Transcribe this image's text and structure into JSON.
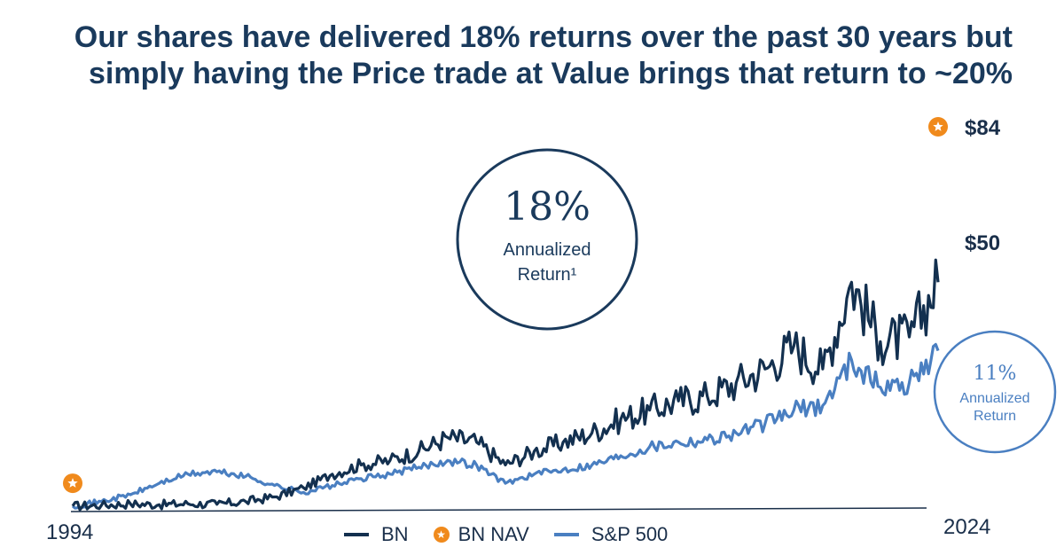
{
  "title_line1": "Our shares have delivered 18% returns over the past 30 years but",
  "title_line2": "simply having the Price trade at Value brings that return to ~20%",
  "callout_bn": {
    "pct": "18%",
    "line1": "Annualized",
    "line2": "Return¹"
  },
  "callout_sp": {
    "pct": "11%",
    "line1": "Annualized",
    "line2": "Return"
  },
  "end_labels": {
    "nav": "$84",
    "bn": "$50"
  },
  "colors": {
    "bn": "#13304f",
    "sp": "#4a7fc1",
    "nav": "#f08a1c",
    "axis": "#1a2f4a"
  },
  "legend": [
    {
      "name": "BN",
      "kind": "line",
      "color": "#13304f"
    },
    {
      "name": "BN NAV",
      "kind": "star",
      "color": "#f08a1c"
    },
    {
      "name": "S&P 500",
      "kind": "line",
      "color": "#4a7fc1"
    }
  ],
  "chart_data": {
    "type": "line",
    "xlabel": "",
    "ylabel": "",
    "x_start_label": "1994",
    "x_end_label": "2024",
    "xlim": [
      1994,
      2024
    ],
    "ylim": [
      0,
      84
    ],
    "grid": false,
    "legend_position": "bottom-center",
    "series": [
      {
        "name": "BN",
        "x": [
          1994,
          1995,
          1996,
          1997,
          1998,
          1999,
          2000,
          2001,
          2002,
          2003,
          2004,
          2005,
          2006,
          2007,
          2008,
          2009,
          2010,
          2011,
          2012,
          2013,
          2014,
          2015,
          2016,
          2017,
          2018,
          2019,
          2020,
          2021,
          2022,
          2023,
          2024
        ],
        "y": [
          1,
          1.2,
          1.5,
          1.3,
          1.5,
          1.4,
          2,
          3,
          5,
          8,
          10,
          11,
          13,
          16,
          15,
          10,
          13,
          15,
          17,
          20,
          22,
          24,
          25,
          28,
          31,
          36,
          31,
          50,
          37,
          38,
          50
        ]
      },
      {
        "name": "S&P 500",
        "x": [
          1994,
          1995,
          1996,
          1997,
          1998,
          1999,
          2000,
          2001,
          2002,
          2003,
          2004,
          2005,
          2006,
          2007,
          2008,
          2009,
          2010,
          2011,
          2012,
          2013,
          2014,
          2015,
          2016,
          2017,
          2018,
          2019,
          2020,
          2021,
          2022,
          2023,
          2024
        ],
        "y": [
          1,
          2,
          3.5,
          6,
          8,
          8.5,
          7.5,
          5.5,
          4,
          5.5,
          7,
          8,
          9.5,
          11,
          10,
          6,
          8,
          9,
          10,
          12,
          14,
          15,
          15.5,
          17,
          19,
          22,
          23,
          33,
          27,
          28,
          35
        ]
      },
      {
        "name": "BN NAV",
        "kind": "points",
        "x": [
          1994,
          2024
        ],
        "y": [
          2,
          84
        ]
      }
    ]
  }
}
